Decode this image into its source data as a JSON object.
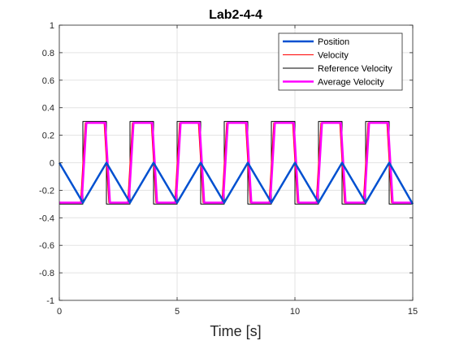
{
  "chart_data": {
    "type": "line",
    "title": "Lab2-4-4",
    "xlabel": "Time [s]",
    "ylabel": "",
    "xlim": [
      0,
      15
    ],
    "ylim": [
      -1,
      1
    ],
    "xticks": [
      0,
      5,
      10,
      15
    ],
    "xtick_labels": [
      "0",
      "5",
      "10",
      "15"
    ],
    "yticks": [
      -1,
      -0.8,
      -0.6,
      -0.4,
      -0.2,
      0,
      0.2,
      0.4,
      0.6,
      0.8,
      1
    ],
    "ytick_labels": [
      "-1",
      "-0.8",
      "-0.6",
      "-0.4",
      "-0.2",
      "0",
      "0.2",
      "0.4",
      "0.6",
      "0.8",
      "1"
    ],
    "grid": true,
    "legend_position": "top-right",
    "series": [
      {
        "name": "Position",
        "color": "#0050d0",
        "x": [
          0,
          1,
          2,
          3,
          4,
          5,
          6,
          7,
          8,
          9,
          10,
          11,
          12,
          13,
          14,
          15
        ],
        "values": [
          0,
          -0.29,
          0,
          -0.29,
          0,
          -0.29,
          0,
          -0.29,
          0,
          -0.29,
          0,
          -0.29,
          0,
          -0.29,
          0,
          -0.3
        ]
      },
      {
        "name": "Velocity",
        "color": "#ff0000",
        "x": [
          0,
          0.9,
          1.1,
          1.9,
          2.1,
          2.9,
          3.1,
          3.9,
          4.1,
          4.9,
          5.1,
          5.9,
          6.1,
          6.9,
          7.1,
          7.9,
          8.1,
          8.9,
          9.1,
          9.9,
          10.1,
          10.9,
          11.1,
          11.9,
          12.1,
          12.9,
          13.1,
          13.9,
          14.1,
          15
        ],
        "values": [
          -0.29,
          -0.29,
          0.29,
          0.29,
          -0.29,
          -0.29,
          0.29,
          0.29,
          -0.29,
          -0.29,
          0.29,
          0.29,
          -0.29,
          -0.29,
          0.29,
          0.29,
          -0.29,
          -0.29,
          0.29,
          0.29,
          -0.29,
          -0.29,
          0.29,
          0.29,
          -0.29,
          -0.29,
          0.29,
          0.29,
          -0.29,
          -0.29
        ]
      },
      {
        "name": "Reference Velocity",
        "color": "#000000",
        "x": [
          0,
          1,
          1,
          2,
          2,
          3,
          3,
          4,
          4,
          5,
          5,
          6,
          6,
          7,
          7,
          8,
          8,
          9,
          9,
          10,
          10,
          11,
          11,
          12,
          12,
          13,
          13,
          14,
          14,
          15
        ],
        "values": [
          -0.3,
          -0.3,
          0.3,
          0.3,
          -0.3,
          -0.3,
          0.3,
          0.3,
          -0.3,
          -0.3,
          0.3,
          0.3,
          -0.3,
          -0.3,
          0.3,
          0.3,
          -0.3,
          -0.3,
          0.3,
          0.3,
          -0.3,
          -0.3,
          0.3,
          0.3,
          -0.3,
          -0.3,
          0.3,
          0.3,
          -0.3,
          -0.3
        ]
      },
      {
        "name": "Average Velocity",
        "color": "#ff00ff",
        "x": [
          0,
          0.95,
          1.15,
          1.95,
          2.15,
          2.95,
          3.15,
          3.95,
          4.15,
          4.95,
          5.15,
          5.95,
          6.15,
          6.95,
          7.15,
          7.95,
          8.15,
          8.95,
          9.15,
          9.95,
          10.15,
          10.95,
          11.15,
          11.95,
          12.15,
          12.95,
          13.15,
          13.95,
          14.15,
          15
        ],
        "values": [
          -0.29,
          -0.29,
          0.29,
          0.29,
          -0.29,
          -0.29,
          0.29,
          0.29,
          -0.29,
          -0.29,
          0.29,
          0.29,
          -0.29,
          -0.29,
          0.29,
          0.29,
          -0.29,
          -0.29,
          0.29,
          0.29,
          -0.29,
          -0.29,
          0.29,
          0.29,
          -0.29,
          -0.29,
          0.29,
          0.29,
          -0.29,
          -0.29
        ]
      }
    ]
  }
}
